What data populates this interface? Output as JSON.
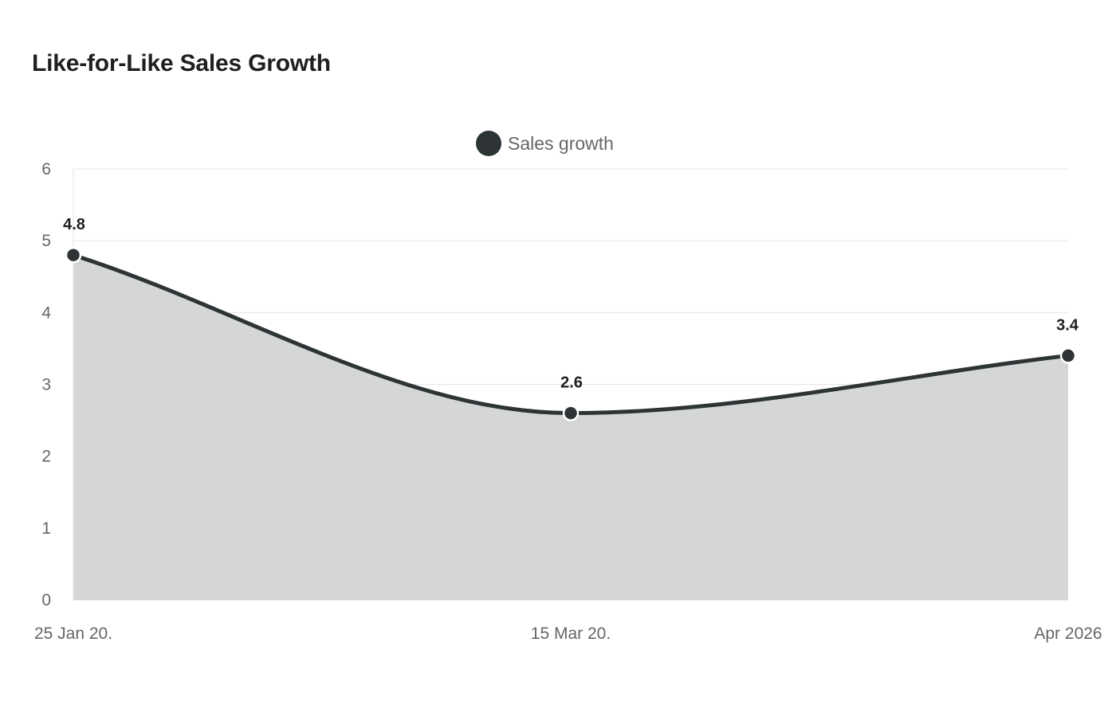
{
  "chart_data": {
    "type": "area",
    "title": "Like-for-Like Sales Growth",
    "x": [
      "25 Jan 20.",
      "15 Mar 20.",
      "Apr 2026"
    ],
    "series": [
      {
        "name": "Sales growth",
        "values": [
          4.8,
          2.6,
          3.4
        ],
        "data_labels": [
          "4.8",
          "2.6",
          "3.4"
        ]
      }
    ],
    "xlabel": "",
    "ylabel": "",
    "ylim": [
      0,
      6
    ],
    "yticks": [
      "0",
      "1",
      "2",
      "3",
      "4",
      "5",
      "6"
    ],
    "grid": true,
    "legend_position": "top-center",
    "colors": {
      "line": "#2e3436",
      "fill": "#d5d7d6",
      "grid": "#e6e6e6",
      "axis": "#cccccc",
      "marker_stroke": "#ffffff"
    }
  }
}
